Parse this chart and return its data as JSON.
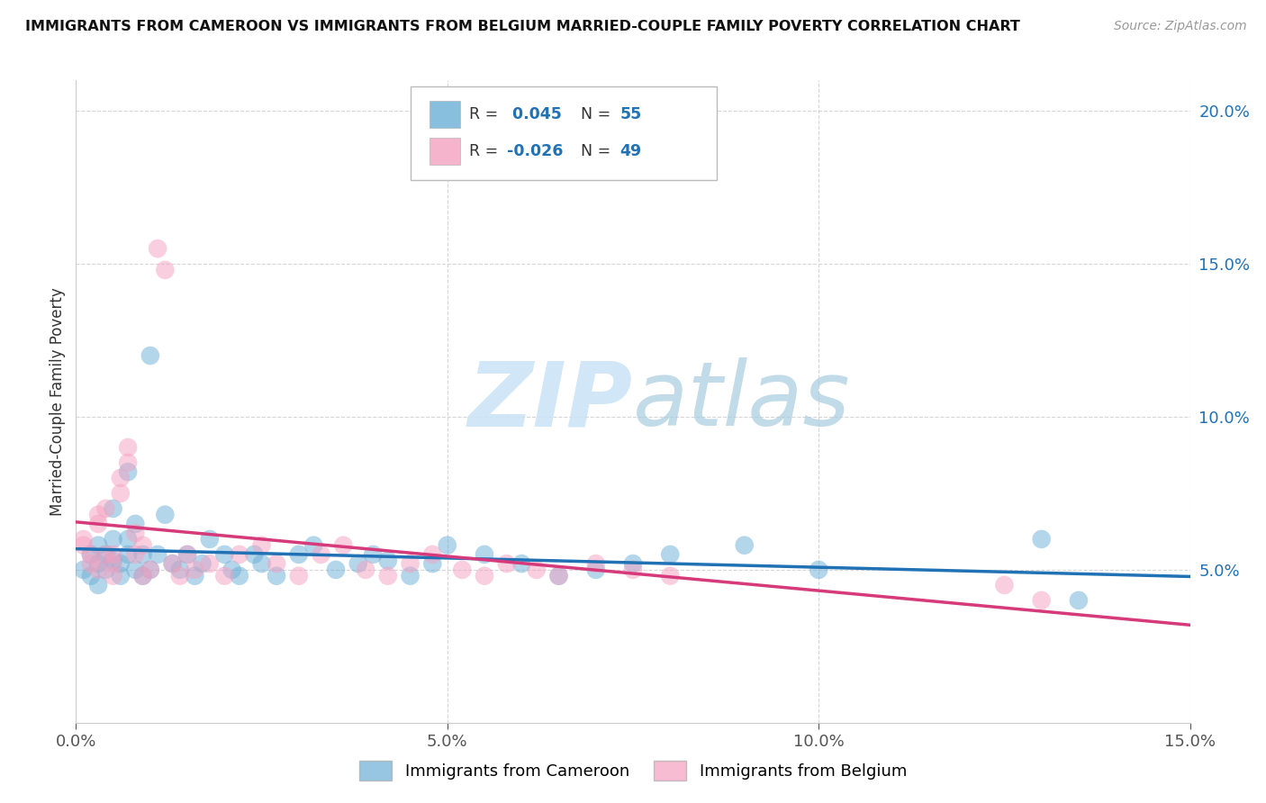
{
  "title": "IMMIGRANTS FROM CAMEROON VS IMMIGRANTS FROM BELGIUM MARRIED-COUPLE FAMILY POVERTY CORRELATION CHART",
  "source": "Source: ZipAtlas.com",
  "ylabel": "Married-Couple Family Poverty",
  "xlim": [
    0.0,
    0.15
  ],
  "ylim": [
    0.0,
    0.21
  ],
  "xticks": [
    0.0,
    0.05,
    0.1,
    0.15
  ],
  "xtick_labels": [
    "0.0%",
    "5.0%",
    "10.0%",
    "15.0%"
  ],
  "yticks": [
    0.05,
    0.1,
    0.15,
    0.2
  ],
  "ytick_labels": [
    "5.0%",
    "10.0%",
    "15.0%",
    "20.0%"
  ],
  "cameroon_R": 0.045,
  "cameroon_N": 55,
  "belgium_R": -0.026,
  "belgium_N": 49,
  "cameroon_color": "#6baed6",
  "belgium_color": "#f4a0c0",
  "trendline_cameroon_color": "#2171b5",
  "trendline_belgium_color": "#d63a7a",
  "watermark_color": "#cce4f5",
  "cameroon_x": [
    0.001,
    0.002,
    0.002,
    0.003,
    0.003,
    0.003,
    0.004,
    0.004,
    0.005,
    0.005,
    0.005,
    0.006,
    0.006,
    0.007,
    0.007,
    0.007,
    0.008,
    0.008,
    0.009,
    0.009,
    0.01,
    0.01,
    0.011,
    0.012,
    0.013,
    0.014,
    0.015,
    0.016,
    0.017,
    0.018,
    0.02,
    0.021,
    0.022,
    0.024,
    0.025,
    0.027,
    0.03,
    0.032,
    0.035,
    0.038,
    0.04,
    0.042,
    0.045,
    0.048,
    0.05,
    0.055,
    0.06,
    0.065,
    0.07,
    0.075,
    0.08,
    0.09,
    0.1,
    0.13,
    0.135
  ],
  "cameroon_y": [
    0.05,
    0.055,
    0.048,
    0.052,
    0.058,
    0.045,
    0.05,
    0.055,
    0.053,
    0.06,
    0.07,
    0.048,
    0.052,
    0.082,
    0.055,
    0.06,
    0.05,
    0.065,
    0.048,
    0.055,
    0.12,
    0.05,
    0.055,
    0.068,
    0.052,
    0.05,
    0.055,
    0.048,
    0.052,
    0.06,
    0.055,
    0.05,
    0.048,
    0.055,
    0.052,
    0.048,
    0.055,
    0.058,
    0.05,
    0.052,
    0.055,
    0.053,
    0.048,
    0.052,
    0.058,
    0.055,
    0.052,
    0.048,
    0.05,
    0.052,
    0.055,
    0.058,
    0.05,
    0.06,
    0.04
  ],
  "belgium_x": [
    0.001,
    0.001,
    0.002,
    0.002,
    0.003,
    0.003,
    0.003,
    0.004,
    0.004,
    0.005,
    0.005,
    0.005,
    0.006,
    0.006,
    0.007,
    0.007,
    0.008,
    0.008,
    0.009,
    0.009,
    0.01,
    0.011,
    0.012,
    0.013,
    0.014,
    0.015,
    0.016,
    0.018,
    0.02,
    0.022,
    0.025,
    0.027,
    0.03,
    0.033,
    0.036,
    0.039,
    0.042,
    0.045,
    0.048,
    0.052,
    0.055,
    0.058,
    0.062,
    0.065,
    0.07,
    0.075,
    0.08,
    0.125,
    0.13
  ],
  "belgium_y": [
    0.06,
    0.058,
    0.052,
    0.055,
    0.05,
    0.065,
    0.068,
    0.055,
    0.07,
    0.048,
    0.052,
    0.055,
    0.075,
    0.08,
    0.09,
    0.085,
    0.055,
    0.062,
    0.048,
    0.058,
    0.05,
    0.155,
    0.148,
    0.052,
    0.048,
    0.055,
    0.05,
    0.052,
    0.048,
    0.055,
    0.058,
    0.052,
    0.048,
    0.055,
    0.058,
    0.05,
    0.048,
    0.052,
    0.055,
    0.05,
    0.048,
    0.052,
    0.05,
    0.048,
    0.052,
    0.05,
    0.048,
    0.045,
    0.04
  ]
}
